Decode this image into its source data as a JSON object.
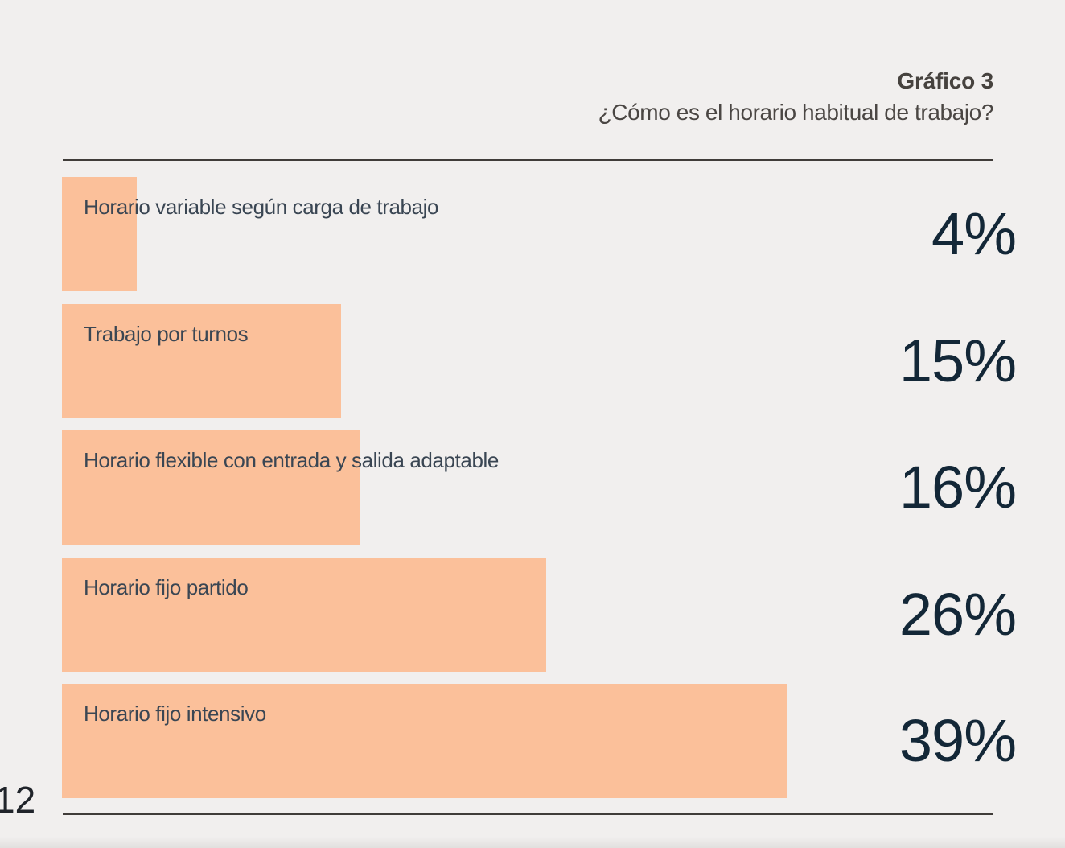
{
  "header": {
    "title": "Gráfico 3",
    "subtitle": "¿Cómo es el horario habitual de trabajo?"
  },
  "page": {
    "page_number": "12"
  },
  "colors": {
    "background": "#f1efee",
    "bar_fill": "#fbc09a",
    "value_text": "#132737",
    "label_text": "#3a4653",
    "title_text": "#46423e",
    "rule": "#403c39"
  },
  "chart_data": {
    "type": "bar",
    "orientation": "horizontal",
    "title": "Gráfico 3",
    "subtitle": "¿Cómo es el horario habitual de trabajo?",
    "categories": [
      "Horario variable según carga de trabajo",
      "Trabajo por turnos",
      "Horario flexible con entrada y salida adaptable",
      "Horario fijo partido",
      "Horario fijo intensivo"
    ],
    "values": [
      4,
      15,
      16,
      26,
      39
    ],
    "value_labels": [
      "4%",
      "15%",
      "16%",
      "26%",
      "39%"
    ],
    "unit": "%",
    "xlim": [
      0,
      50
    ],
    "grid": false,
    "legend": false,
    "value_label_position": "right-column",
    "bar_color": "#fbc09a"
  }
}
